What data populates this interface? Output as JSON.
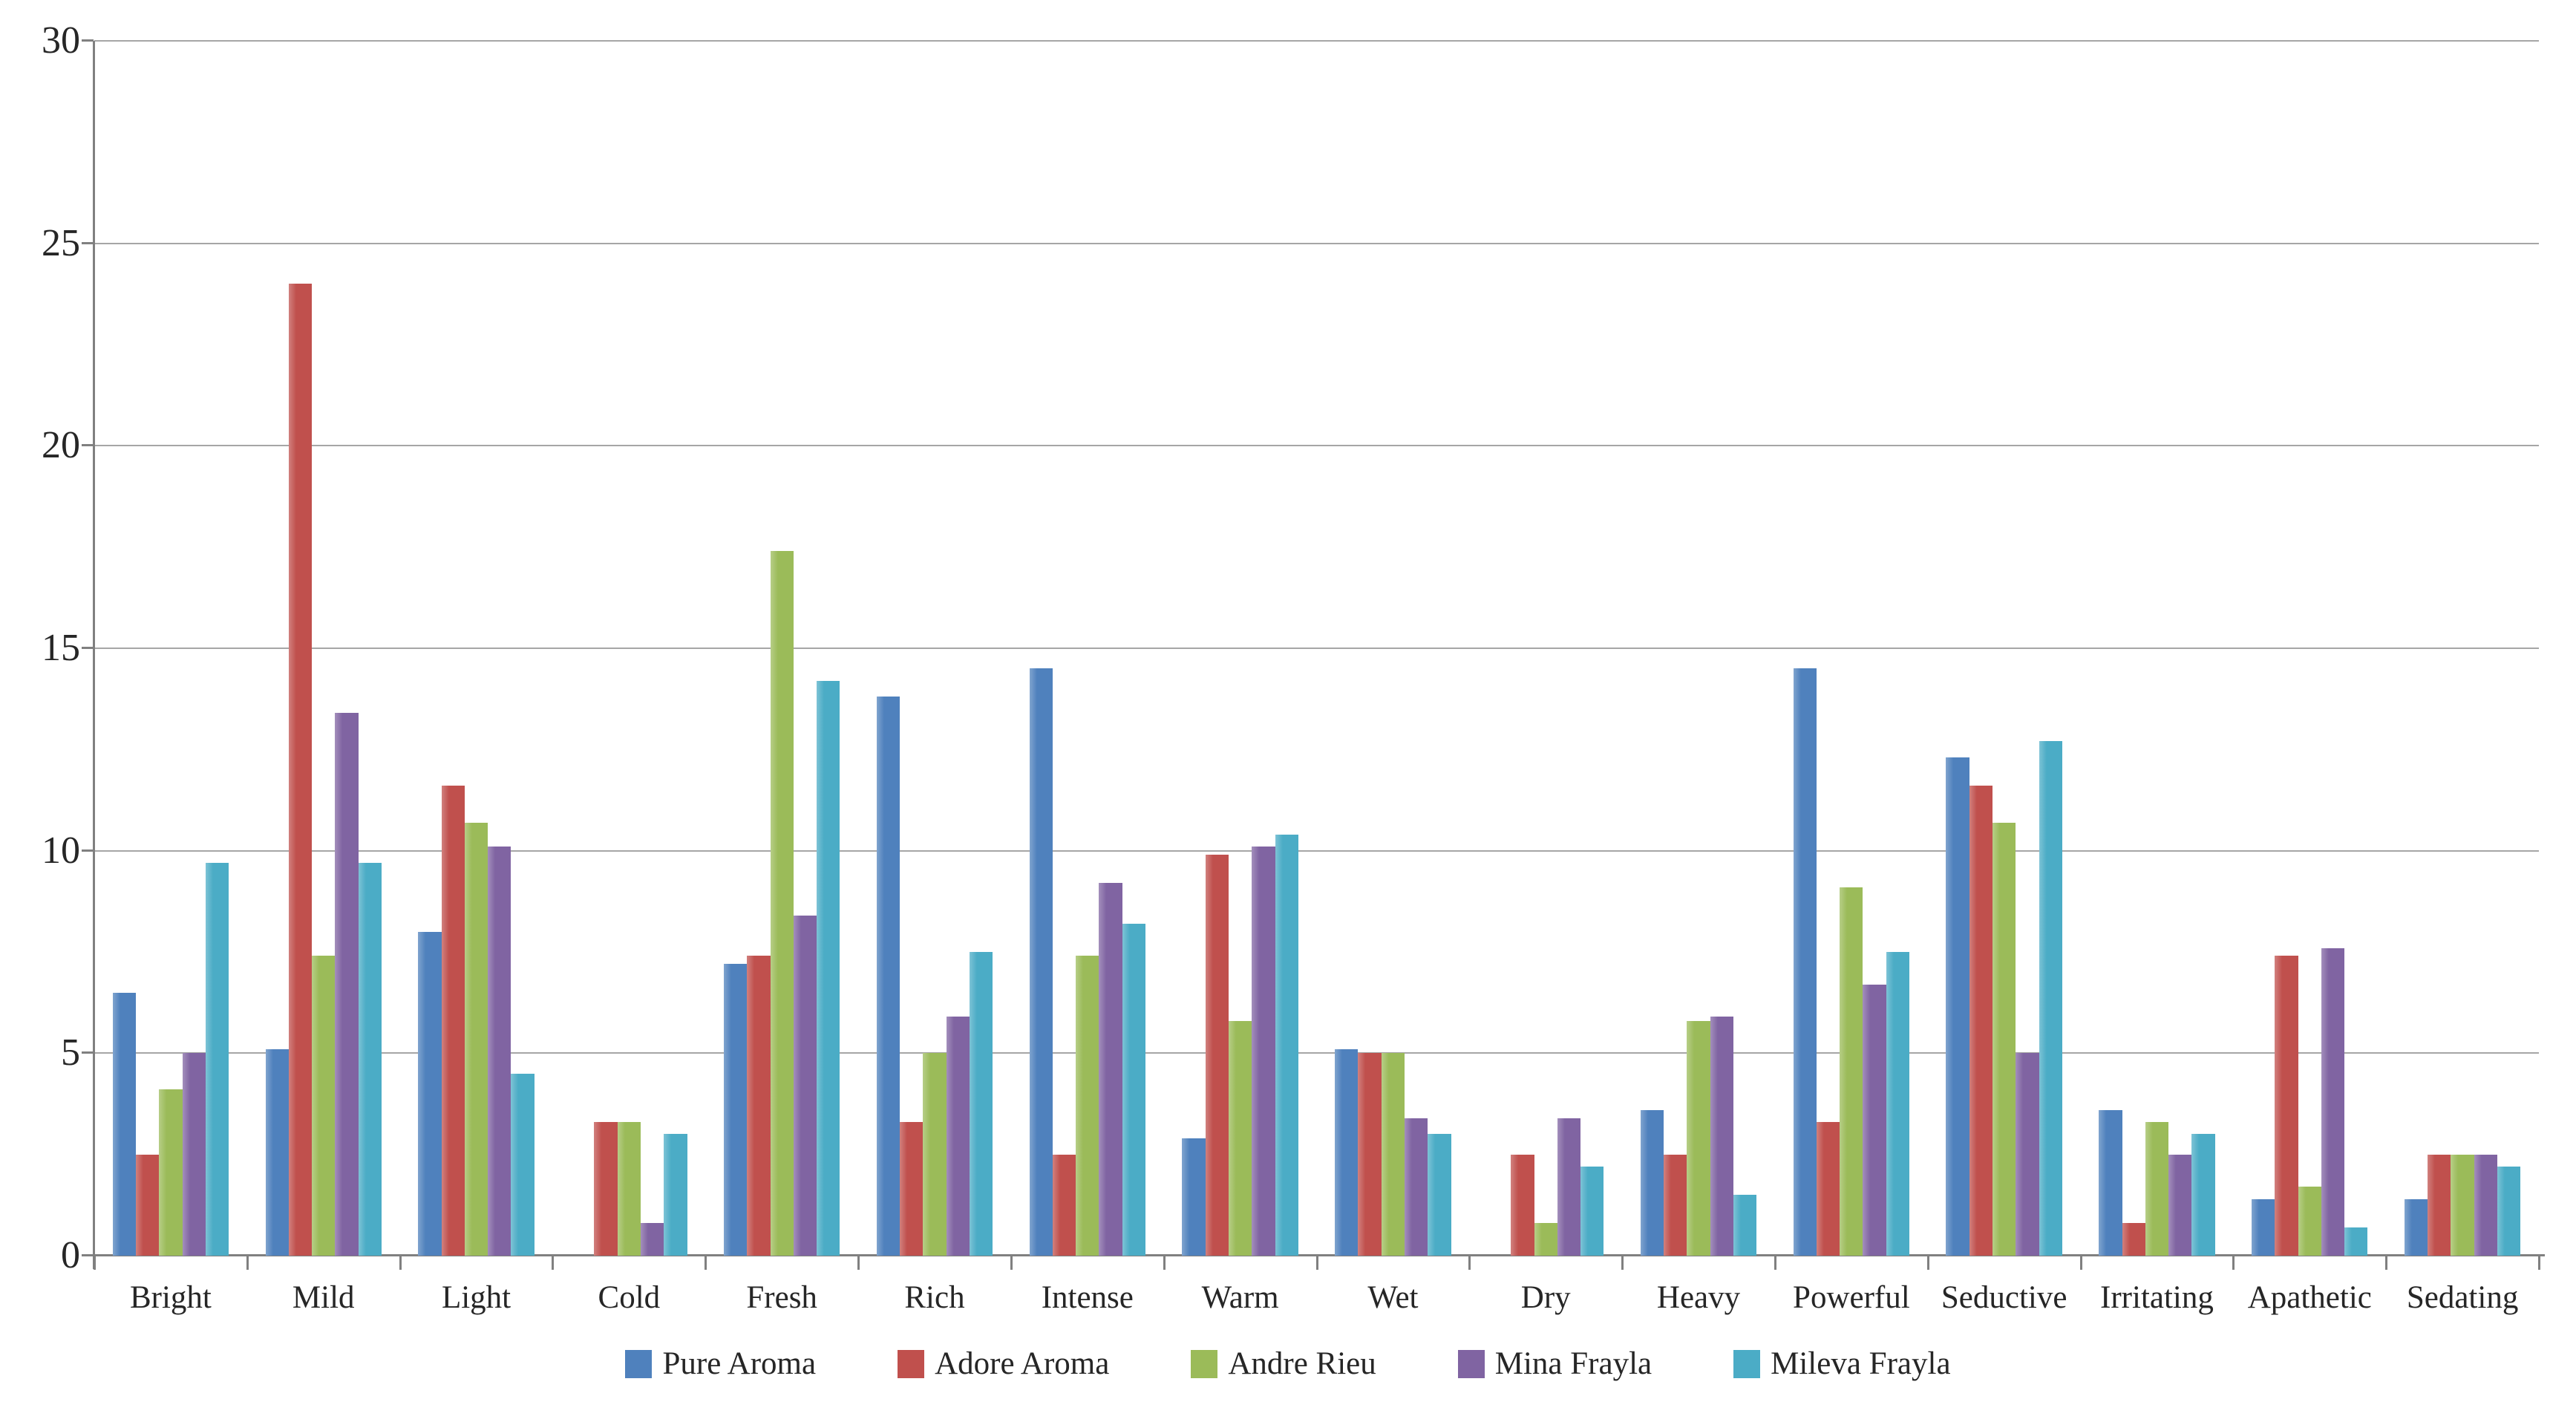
{
  "chart_data": {
    "type": "bar",
    "title": "",
    "xlabel": "",
    "ylabel": "",
    "categories": [
      "Bright",
      "Mild",
      "Light",
      "Cold",
      "Fresh",
      "Rich",
      "Intense",
      "Warm",
      "Wet",
      "Dry",
      "Heavy",
      "Powerful",
      "Seductive",
      "Irritating",
      "Apathetic",
      "Sedating"
    ],
    "series": [
      {
        "name": "Pure Aroma",
        "color": "#4F81BD",
        "values": [
          6.5,
          5.1,
          8.0,
          0,
          7.2,
          13.8,
          14.5,
          2.9,
          5.1,
          0,
          3.6,
          14.5,
          12.3,
          3.6,
          1.4,
          1.4
        ]
      },
      {
        "name": "Adore Aroma",
        "color": "#C0504D",
        "values": [
          2.5,
          24.0,
          11.6,
          3.3,
          7.4,
          3.3,
          2.5,
          9.9,
          5.0,
          2.5,
          2.5,
          3.3,
          11.6,
          0.8,
          7.4,
          2.5
        ]
      },
      {
        "name": "Andre Rieu",
        "color": "#9BBB59",
        "values": [
          4.1,
          7.4,
          10.7,
          3.3,
          17.4,
          5.0,
          7.4,
          5.8,
          5.0,
          0.8,
          5.8,
          9.1,
          10.7,
          3.3,
          1.7,
          2.5
        ]
      },
      {
        "name": "Mina Frayla",
        "color": "#8064A2",
        "values": [
          5.0,
          13.4,
          10.1,
          0.8,
          8.4,
          5.9,
          9.2,
          10.1,
          3.4,
          3.4,
          5.9,
          6.7,
          5.0,
          2.5,
          7.6,
          2.5
        ]
      },
      {
        "name": "Mileva Frayla",
        "color": "#4BACC6",
        "values": [
          9.7,
          9.7,
          4.5,
          3.0,
          14.2,
          7.5,
          8.2,
          10.4,
          3.0,
          2.2,
          1.5,
          7.5,
          12.7,
          3.0,
          0.7,
          2.2
        ]
      }
    ],
    "y_axis": {
      "min": 0,
      "max": 30,
      "step": 5,
      "tick_labels": [
        "0",
        "5",
        "10",
        "15",
        "20",
        "25",
        "30"
      ]
    },
    "grid": true,
    "legend_position": "bottom"
  },
  "style_colors": {
    "axis": "#808080",
    "gridline": "#A6A6A6",
    "text": "#262626",
    "background": "#FFFFFF"
  }
}
